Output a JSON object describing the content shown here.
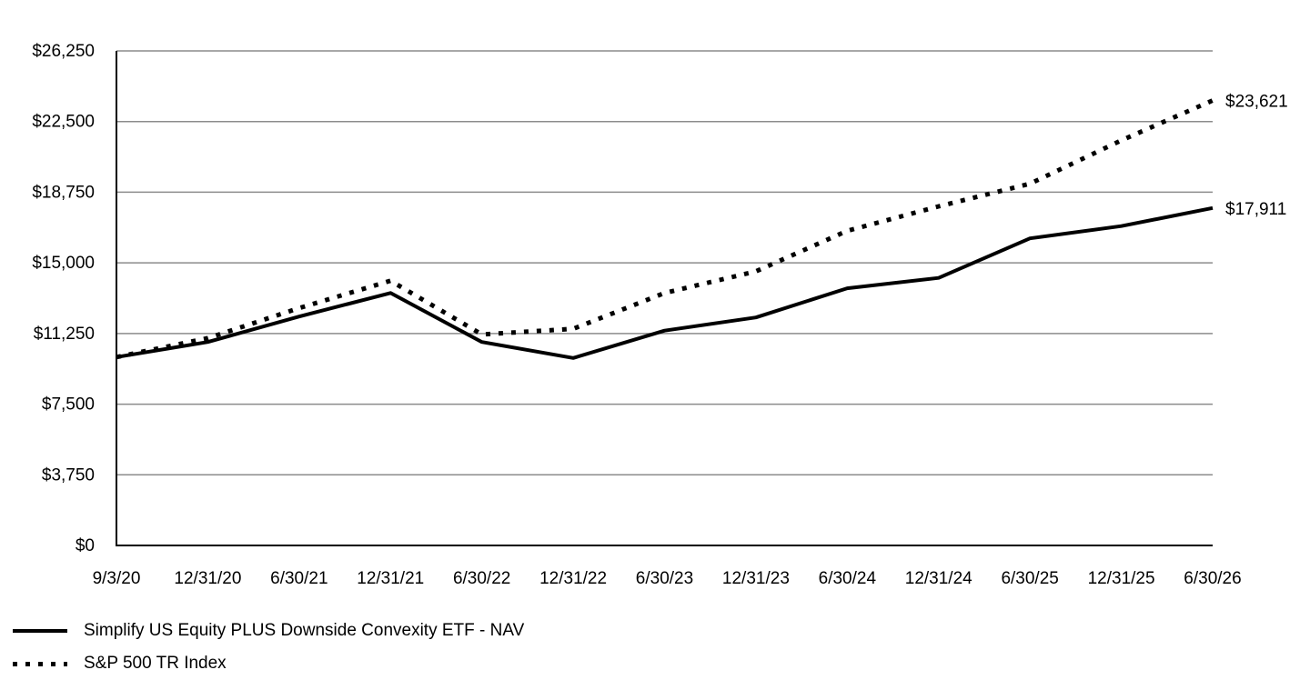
{
  "chart_data": {
    "type": "line",
    "title": "",
    "xlabel": "",
    "ylabel": "",
    "categories": [
      "9/3/20",
      "12/31/20",
      "6/30/21",
      "12/31/21",
      "6/30/22",
      "12/31/22",
      "6/30/23",
      "12/31/23",
      "6/30/24",
      "12/31/24",
      "6/30/25",
      "12/31/25",
      "6/30/26"
    ],
    "ylim": [
      0,
      26250
    ],
    "yticks": [
      0,
      3750,
      7500,
      11250,
      15000,
      18750,
      22500,
      26250
    ],
    "ytick_labels": [
      "$0",
      "$3,750",
      "$7,500",
      "$11,250",
      "$15,000",
      "$18,750",
      "$22,500",
      "$26,250"
    ],
    "grid": true,
    "legend_position": "bottom-left",
    "series": [
      {
        "name": "Simplify US Equity PLUS Downside Convexity ETF - NAV",
        "style": "solid",
        "color": "#000000",
        "values": [
          10000,
          10800,
          12150,
          13400,
          10800,
          9950,
          11400,
          12100,
          13650,
          14200,
          16300,
          16950,
          17911
        ],
        "end_label": "$17,911"
      },
      {
        "name": "S&P 500 TR Index",
        "style": "dotted",
        "color": "#000000",
        "values": [
          10000,
          11000,
          12600,
          14050,
          11200,
          11500,
          13400,
          14550,
          16700,
          18000,
          19200,
          21500,
          23621
        ],
        "end_label": "$23,621"
      }
    ]
  }
}
